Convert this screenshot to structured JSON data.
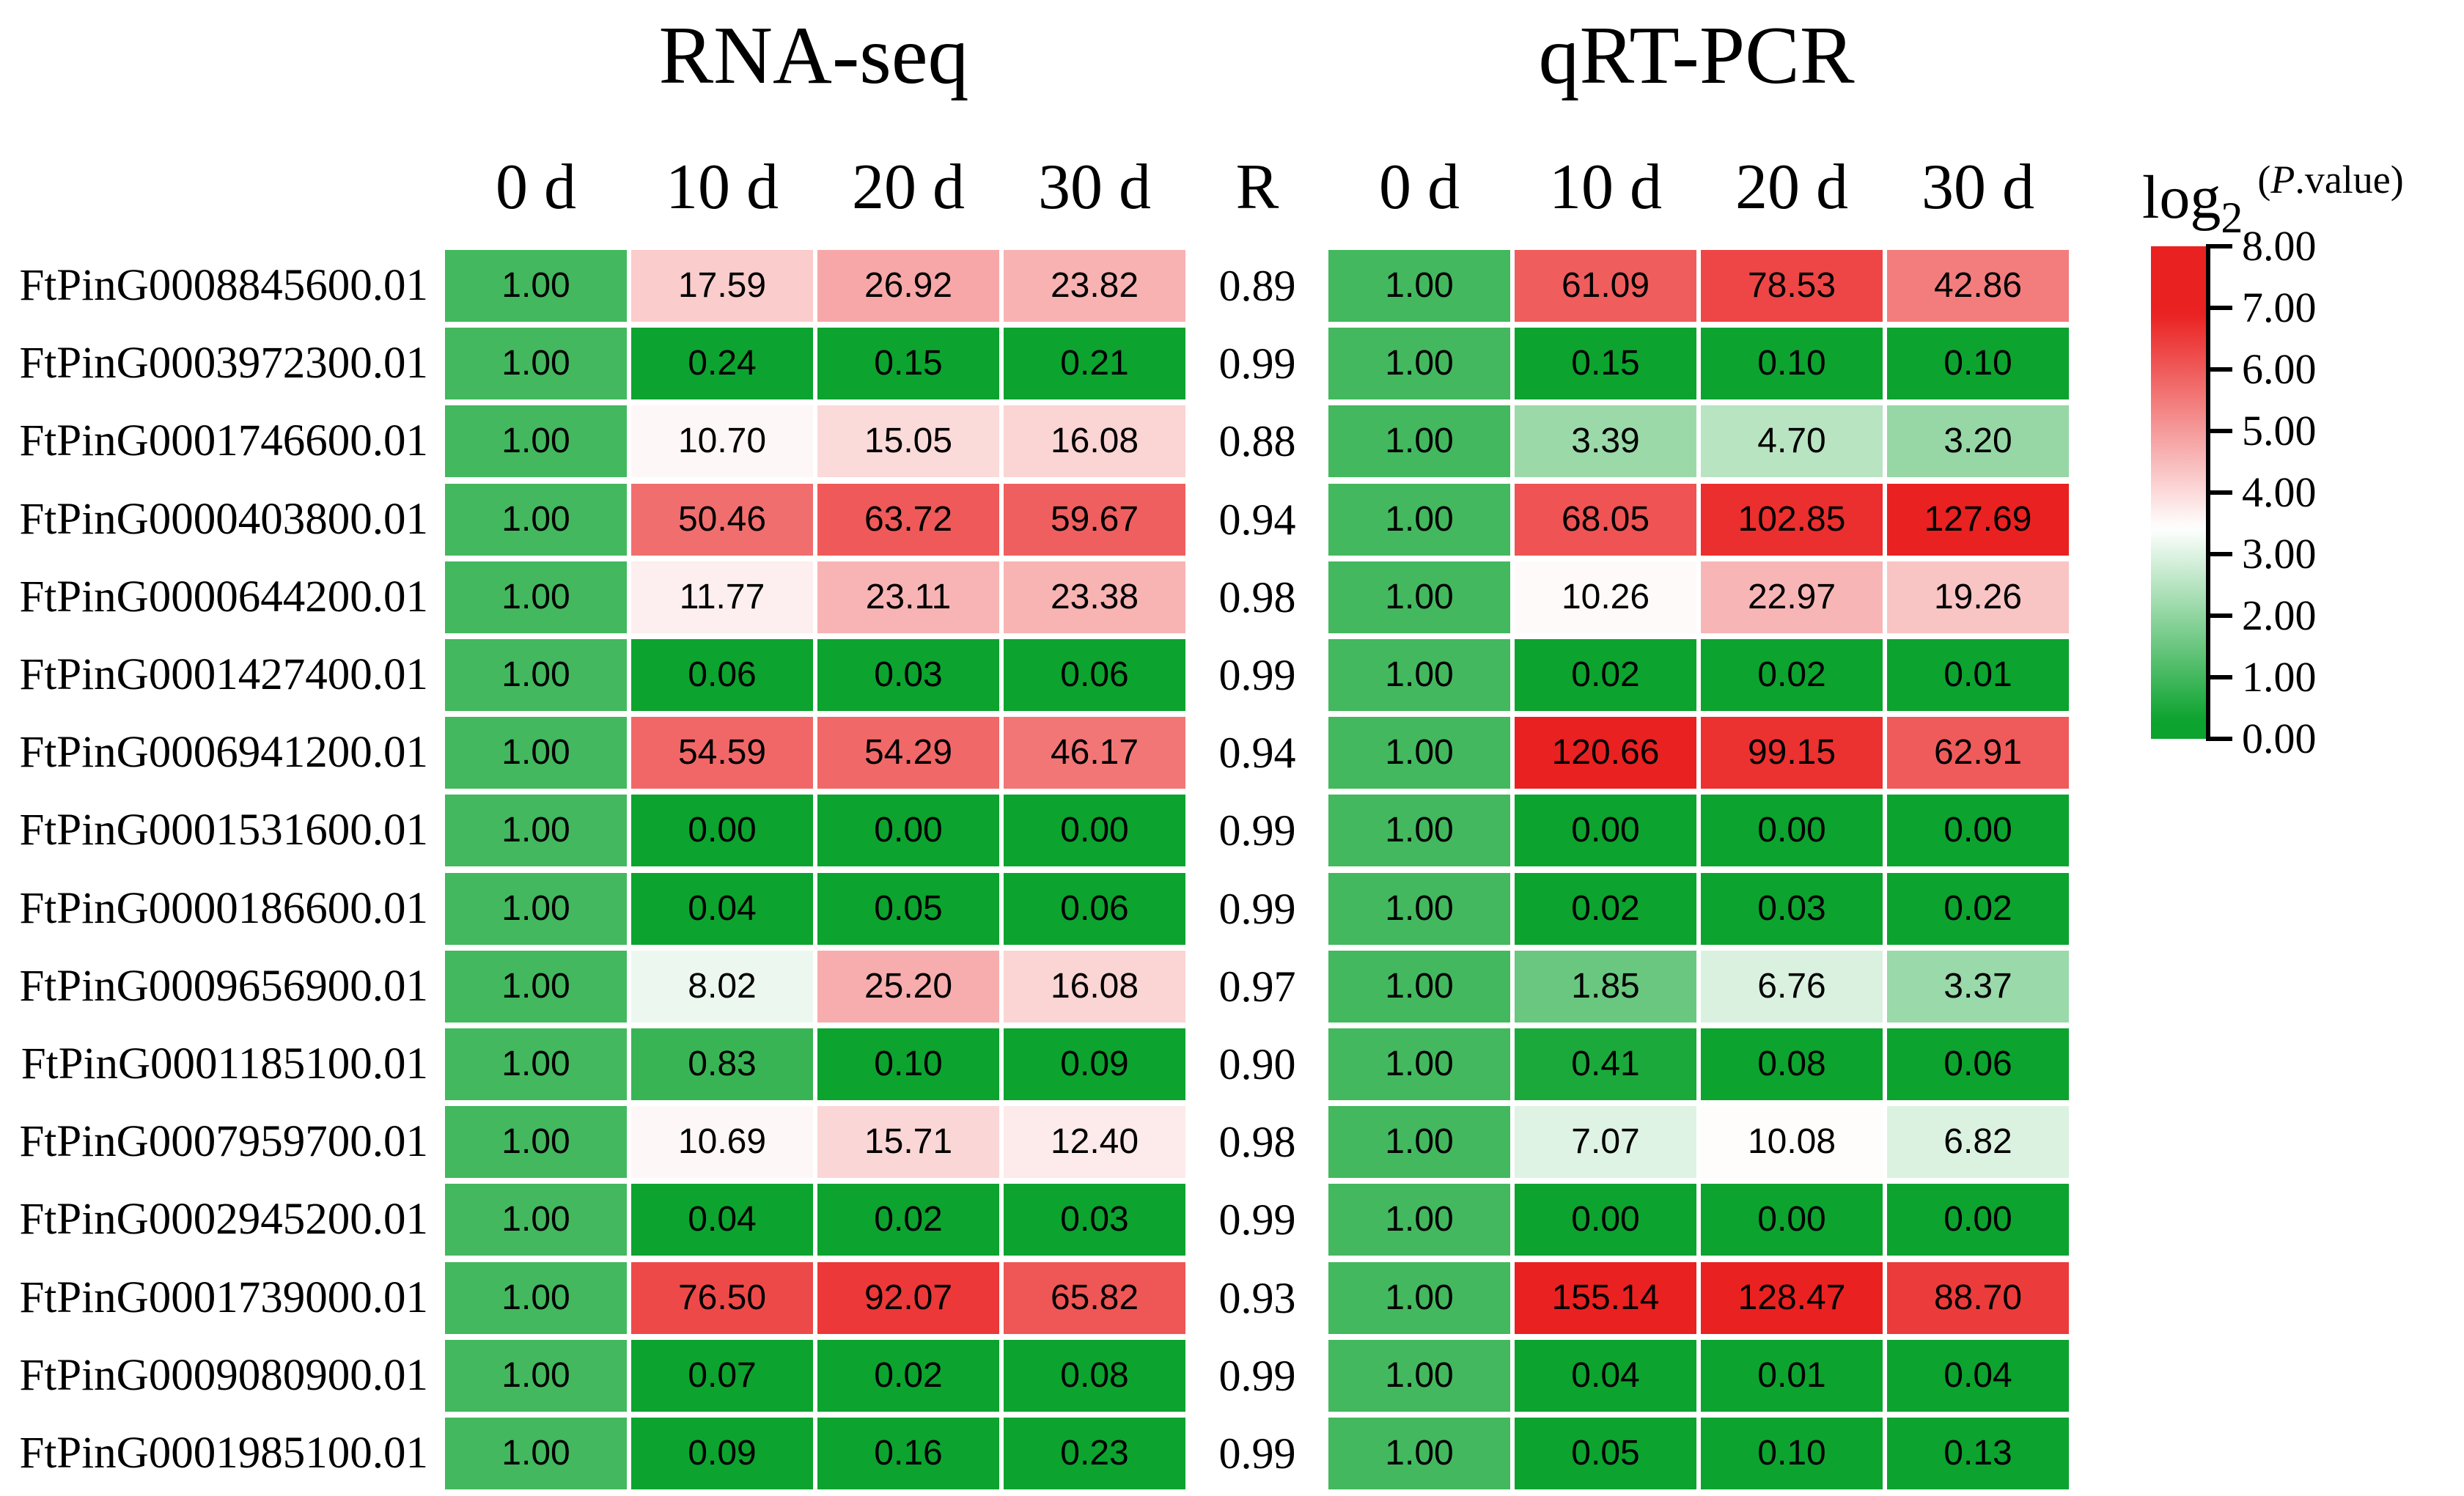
{
  "chart_data": {
    "type": "heatmap",
    "panel_titles": [
      "RNA-seq",
      "qRT-PCR"
    ],
    "time_points": [
      "0 d",
      "10 d",
      "20 d",
      "30 d"
    ],
    "r_column_label": "R",
    "legend": {
      "title_log": "log",
      "title_sub": "2",
      "title_annotation": "(P.value)",
      "anno_open": "(",
      "anno_p": "P",
      "anno_rest": ".value)",
      "tick_labels": [
        "8.00",
        "7.00",
        "6.00",
        "5.00",
        "4.00",
        "3.00",
        "2.00",
        "1.00",
        "0.00"
      ],
      "range": [
        0,
        8
      ]
    },
    "colormap": {
      "transform": "log2(value+1)",
      "domain": [
        0,
        8
      ],
      "white_point": 3.42,
      "green_full_at": 0.3,
      "red_full_at": 6.9,
      "green": "#0CA32F",
      "white": "#FFFFFF",
      "red": "#EA2121",
      "cell_text": "#000000"
    },
    "rows": [
      {
        "gene": "FtPinG0008845600.01",
        "rnaseq": [
          "1.00",
          "17.59",
          "26.92",
          "23.82"
        ],
        "r": "0.89",
        "qrtpcr": [
          "1.00",
          "61.09",
          "78.53",
          "42.86"
        ]
      },
      {
        "gene": "FtPinG0003972300.01",
        "rnaseq": [
          "1.00",
          "0.24",
          "0.15",
          "0.21"
        ],
        "r": "0.99",
        "qrtpcr": [
          "1.00",
          "0.15",
          "0.10",
          "0.10"
        ]
      },
      {
        "gene": "FtPinG0001746600.01",
        "rnaseq": [
          "1.00",
          "10.70",
          "15.05",
          "16.08"
        ],
        "r": "0.88",
        "qrtpcr": [
          "1.00",
          "3.39",
          "4.70",
          "3.20"
        ]
      },
      {
        "gene": "FtPinG0000403800.01",
        "rnaseq": [
          "1.00",
          "50.46",
          "63.72",
          "59.67"
        ],
        "r": "0.94",
        "qrtpcr": [
          "1.00",
          "68.05",
          "102.85",
          "127.69"
        ]
      },
      {
        "gene": "FtPinG0000644200.01",
        "rnaseq": [
          "1.00",
          "11.77",
          "23.11",
          "23.38"
        ],
        "r": "0.98",
        "qrtpcr": [
          "1.00",
          "10.26",
          "22.97",
          "19.26"
        ]
      },
      {
        "gene": "FtPinG0001427400.01",
        "rnaseq": [
          "1.00",
          "0.06",
          "0.03",
          "0.06"
        ],
        "r": "0.99",
        "qrtpcr": [
          "1.00",
          "0.02",
          "0.02",
          "0.01"
        ]
      },
      {
        "gene": "FtPinG0006941200.01",
        "rnaseq": [
          "1.00",
          "54.59",
          "54.29",
          "46.17"
        ],
        "r": "0.94",
        "qrtpcr": [
          "1.00",
          "120.66",
          "99.15",
          "62.91"
        ]
      },
      {
        "gene": "FtPinG0001531600.01",
        "rnaseq": [
          "1.00",
          "0.00",
          "0.00",
          "0.00"
        ],
        "r": "0.99",
        "qrtpcr": [
          "1.00",
          "0.00",
          "0.00",
          "0.00"
        ]
      },
      {
        "gene": "FtPinG0000186600.01",
        "rnaseq": [
          "1.00",
          "0.04",
          "0.05",
          "0.06"
        ],
        "r": "0.99",
        "qrtpcr": [
          "1.00",
          "0.02",
          "0.03",
          "0.02"
        ]
      },
      {
        "gene": "FtPinG0009656900.01",
        "rnaseq": [
          "1.00",
          "8.02",
          "25.20",
          "16.08"
        ],
        "r": "0.97",
        "qrtpcr": [
          "1.00",
          "1.85",
          "6.76",
          "3.37"
        ]
      },
      {
        "gene": "FtPinG0001185100.01",
        "rnaseq": [
          "1.00",
          "0.83",
          "0.10",
          "0.09"
        ],
        "r": "0.90",
        "qrtpcr": [
          "1.00",
          "0.41",
          "0.08",
          "0.06"
        ]
      },
      {
        "gene": "FtPinG0007959700.01",
        "rnaseq": [
          "1.00",
          "10.69",
          "15.71",
          "12.40"
        ],
        "r": "0.98",
        "qrtpcr": [
          "1.00",
          "7.07",
          "10.08",
          "6.82"
        ]
      },
      {
        "gene": "FtPinG0002945200.01",
        "rnaseq": [
          "1.00",
          "0.04",
          "0.02",
          "0.03"
        ],
        "r": "0.99",
        "qrtpcr": [
          "1.00",
          "0.00",
          "0.00",
          "0.00"
        ]
      },
      {
        "gene": "FtPinG0001739000.01",
        "rnaseq": [
          "1.00",
          "76.50",
          "92.07",
          "65.82"
        ],
        "r": "0.93",
        "qrtpcr": [
          "1.00",
          "155.14",
          "128.47",
          "88.70"
        ]
      },
      {
        "gene": "FtPinG0009080900.01",
        "rnaseq": [
          "1.00",
          "0.07",
          "0.02",
          "0.08"
        ],
        "r": "0.99",
        "qrtpcr": [
          "1.00",
          "0.04",
          "0.01",
          "0.04"
        ]
      },
      {
        "gene": "FtPinG0001985100.01",
        "rnaseq": [
          "1.00",
          "0.09",
          "0.16",
          "0.23"
        ],
        "r": "0.99",
        "qrtpcr": [
          "1.00",
          "0.05",
          "0.10",
          "0.13"
        ]
      }
    ]
  }
}
